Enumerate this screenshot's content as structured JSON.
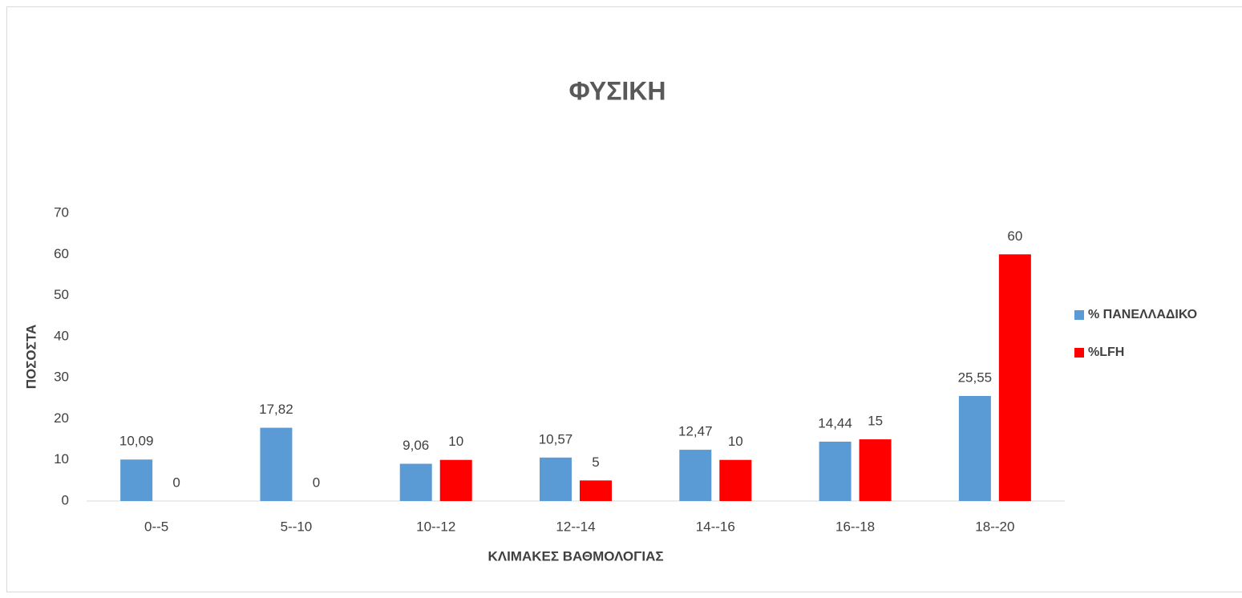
{
  "chart_data": {
    "type": "bar",
    "title": "ΦΥΣΙΚΗ",
    "x_label": "ΚΛΙΜΑΚΕΣ ΒΑΘΜΟΛΟΓΙΑΣ",
    "y_label": "ΠΟΣΟΣΤΑ",
    "categories": [
      "0--5",
      "5--10",
      "10--12",
      "12--14",
      "14--16",
      "16--18",
      "18--20"
    ],
    "series": [
      {
        "name": "% ΠΑΝΕΛΛΑΔΙΚΟ",
        "color": "#5b9bd5",
        "values": [
          10.09,
          17.82,
          9.06,
          10.57,
          12.47,
          14.44,
          25.55
        ],
        "value_labels": [
          "10,09",
          "17,82",
          "9,06",
          "10,57",
          "12,47",
          "14,44",
          "25,55"
        ]
      },
      {
        "name": "%LFH",
        "color": "#ff0000",
        "values": [
          0,
          0,
          10,
          5,
          10,
          15,
          60
        ]
      }
    ],
    "ylim": [
      0,
      70
    ],
    "yticks": [
      0,
      10,
      20,
      30,
      40,
      50,
      60,
      70
    ],
    "grid": false,
    "legend": "right"
  }
}
